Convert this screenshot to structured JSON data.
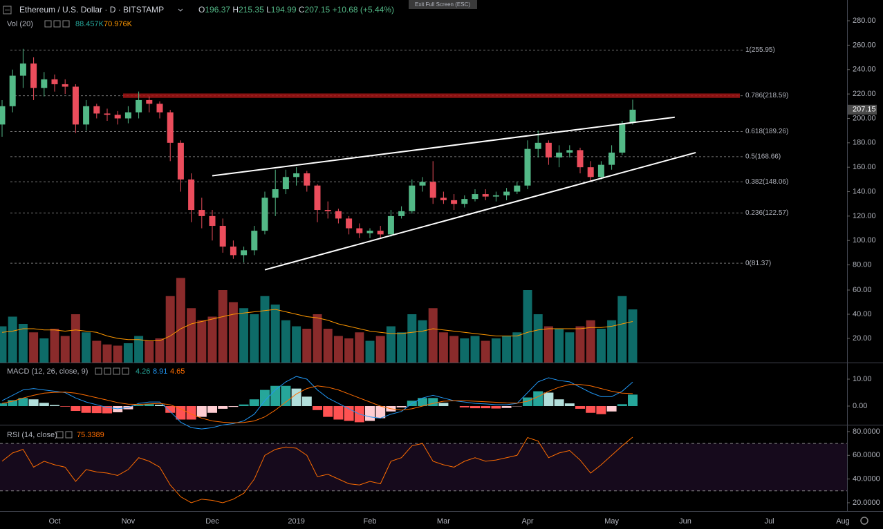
{
  "chart_data": [
    {
      "type": "candlestick",
      "title": "Ethereum / U.S. Dollar · D · BITSTAMP",
      "ohlc_labels": [
        "O",
        "H",
        "L",
        "C"
      ],
      "change": "+10.68 (+5.44%)",
      "categories": [
        null,
        null,
        null,
        null,
        null,
        "Oct",
        null,
        null,
        null,
        null,
        null,
        null,
        "Nov",
        null,
        null,
        null,
        null,
        null,
        null,
        null,
        "Dec",
        null,
        null,
        null,
        null,
        null,
        null,
        null,
        "2019",
        null,
        null,
        null,
        null,
        null,
        null,
        "Feb",
        null,
        null,
        null,
        null,
        null,
        null,
        "Mar",
        null,
        null,
        null,
        null,
        null,
        null,
        null,
        "Apr",
        null,
        null,
        null,
        null,
        null,
        null,
        null,
        "May",
        null,
        null,
        null,
        null,
        null,
        null,
        "Jun",
        null,
        null,
        null,
        null,
        null,
        null,
        null,
        "Jul",
        null,
        null,
        null,
        null,
        null,
        null,
        "Aug"
      ],
      "open": [
        195,
        210,
        235,
        245,
        225,
        232,
        228,
        226,
        195,
        210,
        204,
        203,
        200,
        205,
        215,
        212,
        205,
        180,
        150,
        125,
        120,
        112,
        95,
        88,
        92,
        108,
        135,
        142,
        152,
        155,
        145,
        125,
        124,
        118,
        110,
        106,
        108,
        105,
        120,
        124,
        145,
        148,
        135,
        133,
        130,
        134,
        138,
        136,
        137,
        140,
        145,
        175,
        180,
        168,
        172,
        174,
        160,
        152,
        162,
        172,
        196.37,
        null,
        null,
        null,
        null,
        null,
        null,
        null,
        null,
        null,
        null,
        null,
        null,
        null,
        null,
        null,
        null,
        null,
        null,
        null,
        null
      ],
      "high": [
        215,
        240,
        257,
        250,
        238,
        236,
        232,
        228,
        215,
        212,
        208,
        206,
        210,
        222,
        218,
        214,
        207,
        182,
        155,
        135,
        125,
        118,
        100,
        95,
        112,
        140,
        158,
        158,
        160,
        157,
        146,
        132,
        126,
        120,
        114,
        110,
        112,
        125,
        128,
        150,
        152,
        165,
        140,
        138,
        137,
        142,
        142,
        140,
        143,
        148,
        182,
        190,
        182,
        178,
        178,
        176,
        165,
        165,
        178,
        198,
        215.35,
        null,
        null,
        null,
        null,
        null,
        null,
        null,
        null,
        null,
        null,
        null,
        null,
        null,
        null,
        null,
        null,
        null,
        null,
        null,
        null
      ],
      "low": [
        185,
        205,
        225,
        215,
        218,
        222,
        220,
        188,
        190,
        200,
        198,
        195,
        196,
        200,
        205,
        200,
        165,
        140,
        115,
        110,
        100,
        90,
        85,
        82,
        88,
        105,
        120,
        138,
        145,
        140,
        115,
        118,
        114,
        105,
        102,
        102,
        102,
        103,
        118,
        122,
        140,
        130,
        130,
        125,
        127,
        132,
        133,
        132,
        133,
        138,
        142,
        168,
        162,
        160,
        168,
        155,
        148,
        150,
        158,
        170,
        194.99,
        null,
        null,
        null,
        null,
        null,
        null,
        null,
        null,
        null,
        null,
        null,
        null,
        null,
        null,
        null,
        null,
        null,
        null,
        null,
        null
      ],
      "close": [
        210,
        235,
        245,
        225,
        232,
        228,
        226,
        195,
        210,
        204,
        203,
        200,
        205,
        215,
        212,
        205,
        180,
        150,
        125,
        120,
        112,
        95,
        88,
        92,
        108,
        135,
        142,
        152,
        155,
        145,
        125,
        124,
        118,
        110,
        106,
        108,
        105,
        120,
        124,
        145,
        148,
        135,
        133,
        130,
        134,
        138,
        136,
        137,
        140,
        145,
        175,
        180,
        168,
        172,
        174,
        160,
        152,
        162,
        172,
        196,
        207.15,
        null,
        null,
        null,
        null,
        null,
        null,
        null,
        null,
        null,
        null,
        null,
        null,
        null,
        null,
        null,
        null,
        null,
        null,
        null,
        null
      ],
      "up_color": "#53b987",
      "down_color": "#eb4d5c",
      "ylim": [
        0,
        297
      ],
      "yticks": [
        {
          "value": 80,
          "label": "80.00"
        },
        {
          "value": 100,
          "label": "100.00"
        },
        {
          "value": 120,
          "label": "120.00"
        },
        {
          "value": 140,
          "label": "140.00"
        },
        {
          "value": 160,
          "label": "160.00"
        },
        {
          "value": 180,
          "label": "180.00"
        },
        {
          "value": 200,
          "label": "200.00"
        },
        {
          "value": 220,
          "label": "220.00"
        },
        {
          "value": 240,
          "label": "240.00"
        },
        {
          "value": 260,
          "label": "260.00"
        },
        {
          "value": 280,
          "label": "280.00"
        }
      ],
      "fib_levels": [
        {
          "value": 255.95,
          "label": "1(255.95)"
        },
        {
          "value": 218.59,
          "label": "0.786(218.59)"
        },
        {
          "value": 189.26,
          "label": "0.618(189.26)"
        },
        {
          "value": 168.66,
          "label": "0.5(168.66)"
        },
        {
          "value": 148.06,
          "label": "0.382(148.06)"
        },
        {
          "value": 122.57,
          "label": "0.236(122.57)"
        },
        {
          "value": 81.37,
          "label": "0(81.37)"
        }
      ],
      "zone": [
        216.8,
        220.4
      ],
      "zone_color": "#a31515",
      "trendlines": [
        {
          "points": [
            [
              20,
              153
            ],
            [
              64,
              201
            ]
          ]
        },
        {
          "points": [
            [
              25,
              76
            ],
            [
              66,
              172
            ]
          ]
        }
      ]
    },
    {
      "type": "volume",
      "title": "Vol (20)",
      "legend_values": [
        "88.457K",
        "70.976K"
      ],
      "values": [
        30,
        38,
        32,
        25,
        20,
        28,
        22,
        40,
        25,
        18,
        15,
        14,
        16,
        22,
        18,
        20,
        55,
        70,
        45,
        35,
        38,
        60,
        50,
        45,
        40,
        55,
        48,
        35,
        30,
        28,
        40,
        28,
        22,
        20,
        25,
        18,
        22,
        30,
        25,
        40,
        35,
        45,
        25,
        22,
        20,
        22,
        18,
        20,
        22,
        25,
        60,
        40,
        30,
        28,
        25,
        30,
        35,
        28,
        35,
        55,
        44,
        null,
        null,
        null,
        null,
        null,
        null,
        null,
        null,
        null,
        null,
        null,
        null,
        null,
        null,
        null,
        null,
        null,
        null,
        null,
        null
      ],
      "ma": [
        25,
        26,
        28,
        28,
        27,
        27,
        26,
        27,
        26,
        25,
        22,
        20,
        19,
        19,
        18,
        18,
        22,
        28,
        32,
        34,
        36,
        38,
        40,
        41,
        42,
        43,
        44,
        42,
        40,
        38,
        37,
        35,
        32,
        30,
        28,
        26,
        25,
        24,
        24,
        25,
        26,
        28,
        27,
        26,
        25,
        24,
        23,
        22,
        22,
        22,
        25,
        27,
        28,
        28,
        28,
        28,
        29,
        29,
        30,
        32,
        34,
        null,
        null,
        null,
        null,
        null,
        null,
        null,
        null,
        null,
        null,
        null,
        null,
        null,
        null,
        null,
        null,
        null,
        null,
        null,
        null
      ],
      "up_color": "#0e6b68",
      "down_color": "#8a2b2b",
      "ma_color": "#ff9800",
      "ylim": [
        0,
        75
      ],
      "yticks": [
        {
          "value": 20,
          "label": "20.00"
        },
        {
          "value": 40,
          "label": "40.00"
        },
        {
          "value": 60,
          "label": "60.00"
        }
      ]
    },
    {
      "type": "macd",
      "title": "MACD (12, 26, close, 9)",
      "histogram": [
        1,
        2.2,
        3,
        2.5,
        1.2,
        0.4,
        -0.2,
        -1.8,
        -2.5,
        -2.6,
        -2.7,
        -2.3,
        -1.2,
        0.4,
        0.7,
        0.5,
        -2.5,
        -5,
        -5,
        -4,
        -2.5,
        -1,
        -0.3,
        0.6,
        2.5,
        6,
        7.5,
        7.5,
        6.5,
        3.5,
        -1.5,
        -4,
        -5,
        -5.5,
        -6,
        -5.5,
        -4.5,
        -2,
        -0.5,
        2,
        3,
        3,
        1.2,
        0,
        -0.5,
        -0.8,
        -0.8,
        -0.9,
        -0.7,
        -0.1,
        3.2,
        5.5,
        5,
        2.5,
        1,
        -1,
        -2.5,
        -3,
        -2,
        0.7,
        4.26,
        null,
        null,
        null,
        null,
        null,
        null,
        null,
        null,
        null,
        null,
        null,
        null,
        null,
        null,
        null,
        null,
        null,
        null,
        null,
        null
      ],
      "macd": [
        2,
        4,
        6,
        6.5,
        6,
        5.5,
        5,
        3,
        1.5,
        0.5,
        -0.5,
        -1,
        -0.5,
        1,
        1.5,
        1.5,
        -2,
        -6,
        -8,
        -8.5,
        -8,
        -7,
        -6.5,
        -5.5,
        -3,
        2,
        6,
        9,
        11,
        10,
        6,
        3,
        1,
        -1,
        -3,
        -4,
        -4.5,
        -3,
        -2,
        1,
        3,
        4,
        3,
        2,
        1.5,
        1,
        0.8,
        0.5,
        0.5,
        1,
        5,
        9,
        10.5,
        9.5,
        9,
        7,
        5,
        3.5,
        3.5,
        5.5,
        8.91,
        null,
        null,
        null,
        null,
        null,
        null,
        null,
        null,
        null,
        null,
        null,
        null,
        null,
        null,
        null,
        null,
        null,
        null,
        null,
        null
      ],
      "signal": [
        1,
        1.8,
        3,
        4,
        4.8,
        5.1,
        5.2,
        4.8,
        4,
        3.1,
        2.2,
        1.3,
        0.7,
        0.6,
        0.8,
        1,
        0.5,
        -1,
        -3,
        -4.5,
        -5.5,
        -6,
        -6.2,
        -6.1,
        -5.5,
        -4,
        -1.5,
        1.5,
        4.5,
        6.5,
        7.5,
        7,
        6,
        4.5,
        3,
        1.5,
        0,
        -1,
        -1.5,
        -1,
        0,
        1,
        1.8,
        2,
        2,
        1.8,
        1.6,
        1.4,
        1.2,
        1.1,
        1.8,
        3.5,
        5.5,
        7,
        8,
        8,
        7.5,
        6.5,
        5.5,
        4.8,
        4.65,
        null,
        null,
        null,
        null,
        null,
        null,
        null,
        null,
        null,
        null,
        null,
        null,
        null,
        null,
        null,
        null,
        null,
        null,
        null,
        null
      ],
      "hist_colors": [
        "#26a69a",
        "#b2dfdb",
        "#ff5252",
        "#ffcdd2"
      ],
      "macd_color": "#2196f3",
      "signal_color": "#ff6d00",
      "ylim": [
        -6.92,
        16.15
      ],
      "yticks": [
        {
          "value": 10,
          "label": "10.00"
        },
        {
          "value": 0,
          "label": "0.00"
        }
      ]
    },
    {
      "type": "rsi",
      "title": "RSI (14, close)",
      "values": [
        55,
        62,
        65,
        50,
        55,
        52,
        50,
        38,
        48,
        46,
        45,
        43,
        48,
        58,
        55,
        50,
        35,
        25,
        20,
        23,
        22,
        20,
        23,
        28,
        40,
        60,
        65,
        67,
        66,
        60,
        42,
        44,
        40,
        36,
        35,
        38,
        36,
        55,
        58,
        68,
        70,
        55,
        52,
        50,
        55,
        58,
        55,
        56,
        58,
        60,
        75,
        72,
        58,
        62,
        64,
        56,
        45,
        52,
        60,
        68,
        75.3389,
        null,
        null,
        null,
        null,
        null,
        null,
        null,
        null,
        null,
        null,
        null,
        null,
        null,
        null,
        null,
        null,
        null,
        null,
        null,
        null
      ],
      "color": "#ff6d00",
      "bands": [
        70,
        30
      ],
      "band_fill": "#160a1c",
      "ylim": [
        13,
        85.8
      ],
      "yticks": [
        {
          "value": 80,
          "label": "80.0000"
        },
        {
          "value": 60,
          "label": "60.0000"
        },
        {
          "value": 40,
          "label": "40.0000"
        },
        {
          "value": 20,
          "label": "20.0000"
        }
      ]
    }
  ],
  "ui": {
    "exit_button": "Exit Full Screen (ESC)"
  }
}
